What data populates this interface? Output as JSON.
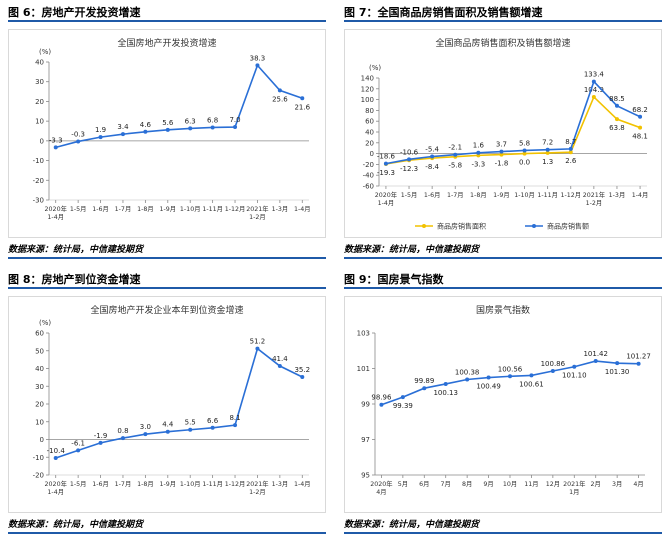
{
  "panels": [
    {
      "label": "图 6：房地产开发投资增速",
      "source": "数据来源：统计局，中信建投期货",
      "chart_data": {
        "type": "line",
        "title": "全国房地产开发投资增速",
        "unit": "(%)",
        "categories": [
          [
            "2020年",
            "1-4月"
          ],
          [
            "1-5月"
          ],
          [
            "1-6月"
          ],
          [
            "1-7月"
          ],
          [
            "1-8月"
          ],
          [
            "1-9月"
          ],
          [
            "1-10月"
          ],
          [
            "1-11月"
          ],
          [
            "1-12月"
          ],
          [
            "2021年",
            "1-2月"
          ],
          [
            "1-3月"
          ],
          [
            "1-4月"
          ]
        ],
        "ylim": [
          -30,
          40
        ],
        "yticks": [
          -30,
          -20,
          -10,
          0,
          10,
          20,
          30,
          40
        ],
        "series": [
          {
            "name": "",
            "color": "#2a6fd6",
            "values": [
              -3.3,
              -0.3,
              1.9,
              3.4,
              4.6,
              5.6,
              6.3,
              6.8,
              7.0,
              38.3,
              25.6,
              21.6
            ],
            "labels": [
              "-3.3",
              "-0.3",
              "1.9",
              "3.4",
              "4.6",
              "5.6",
              "6.3",
              "6.8",
              "7.0",
              "38.3",
              "25.6",
              "21.6"
            ]
          }
        ]
      }
    },
    {
      "label": "图 7：全国商品房销售面积及销售额增速",
      "source": "数据来源：统计局，中信建投期货",
      "chart_data": {
        "type": "line",
        "title": "全国商品房销售面积及销售额增速",
        "unit": "(%)",
        "categories": [
          [
            "2020年",
            "1-4月"
          ],
          [
            "1-5月"
          ],
          [
            "1-6月"
          ],
          [
            "1-7月"
          ],
          [
            "1-8月"
          ],
          [
            "1-9月"
          ],
          [
            "1-10月"
          ],
          [
            "1-11月"
          ],
          [
            "1-12月"
          ],
          [
            "2021年",
            "1-2月"
          ],
          [
            "1-3月"
          ],
          [
            "1-4月"
          ]
        ],
        "ylim": [
          -60,
          140
        ],
        "yticks": [
          -60,
          -40,
          -20,
          0,
          20,
          40,
          60,
          80,
          100,
          120,
          140
        ],
        "legend": "bottom",
        "series": [
          {
            "name": "商品房销售面积",
            "color": "#f2c200",
            "values": [
              -19.3,
              -12.3,
              -8.4,
              -5.8,
              -3.3,
              -1.8,
              0.0,
              1.3,
              2.6,
              104.9,
              63.8,
              48.1
            ],
            "labels": [
              "-19.3",
              "-12.3",
              "-8.4",
              "-5.8",
              "-3.3",
              "-1.8",
              "0.0",
              "1.3",
              "2.6",
              "104.9",
              "63.8",
              "48.1"
            ]
          },
          {
            "name": "商品房销售额",
            "color": "#2a6fd6",
            "values": [
              -18.6,
              -10.6,
              -5.4,
              -2.1,
              1.6,
              3.7,
              5.8,
              7.2,
              8.7,
              133.4,
              88.5,
              68.2
            ],
            "labels": [
              "-18.6",
              "-10.6",
              "-5.4",
              "-2.1",
              "1.6",
              "3.7",
              "5.8",
              "7.2",
              "8.7",
              "133.4",
              "88.5",
              "68.2"
            ]
          }
        ]
      }
    },
    {
      "label": "图 8：房地产到位资金增速",
      "source": "数据来源：统计局，中信建投期货",
      "chart_data": {
        "type": "line",
        "title": "全国房地产开发企业本年到位资金增速",
        "unit": "(%)",
        "categories": [
          [
            "2020年",
            "1-4月"
          ],
          [
            "1-5月"
          ],
          [
            "1-6月"
          ],
          [
            "1-7月"
          ],
          [
            "1-8月"
          ],
          [
            "1-9月"
          ],
          [
            "1-10月"
          ],
          [
            "1-11月"
          ],
          [
            "1-12月"
          ],
          [
            "2021年",
            "1-2月"
          ],
          [
            "1-3月"
          ],
          [
            "1-4月"
          ]
        ],
        "ylim": [
          -20,
          60
        ],
        "yticks": [
          -20,
          -10,
          0,
          10,
          20,
          30,
          40,
          50,
          60
        ],
        "series": [
          {
            "name": "",
            "color": "#2a6fd6",
            "values": [
              -10.4,
              -6.1,
              -1.9,
              0.8,
              3.0,
              4.4,
              5.5,
              6.6,
              8.1,
              51.2,
              41.4,
              35.2
            ],
            "labels": [
              "-10.4",
              "-6.1",
              "-1.9",
              "0.8",
              "3.0",
              "4.4",
              "5.5",
              "6.6",
              "8.1",
              "51.2",
              "41.4",
              "35.2"
            ]
          }
        ]
      }
    },
    {
      "label": "图 9：国房景气指数",
      "source": "数据来源：统计局，中信建投期货",
      "chart_data": {
        "type": "line",
        "title": "国房景气指数",
        "unit": "",
        "categories": [
          [
            "2020年",
            "4月"
          ],
          [
            "5月"
          ],
          [
            "6月"
          ],
          [
            "7月"
          ],
          [
            "8月"
          ],
          [
            "9月"
          ],
          [
            "10月"
          ],
          [
            "11月"
          ],
          [
            "12月"
          ],
          [
            "2021年",
            "1月"
          ],
          [
            "2月"
          ],
          [
            "3月"
          ],
          [
            "4月"
          ]
        ],
        "ylim": [
          95,
          103
        ],
        "yticks": [
          95,
          97,
          99,
          101,
          103
        ],
        "series": [
          {
            "name": "",
            "color": "#2a6fd6",
            "values": [
              98.96,
              99.39,
              99.89,
              100.13,
              100.38,
              100.49,
              100.56,
              100.61,
              100.86,
              101.1,
              101.42,
              101.3,
              101.27
            ],
            "labels": [
              "98.96",
              "99.39",
              "99.89",
              "100.13",
              "100.38",
              "100.49",
              "100.56",
              "100.61",
              "100.86",
              "101.10",
              "101.42",
              "101.30",
              "101.27"
            ]
          }
        ]
      }
    }
  ]
}
